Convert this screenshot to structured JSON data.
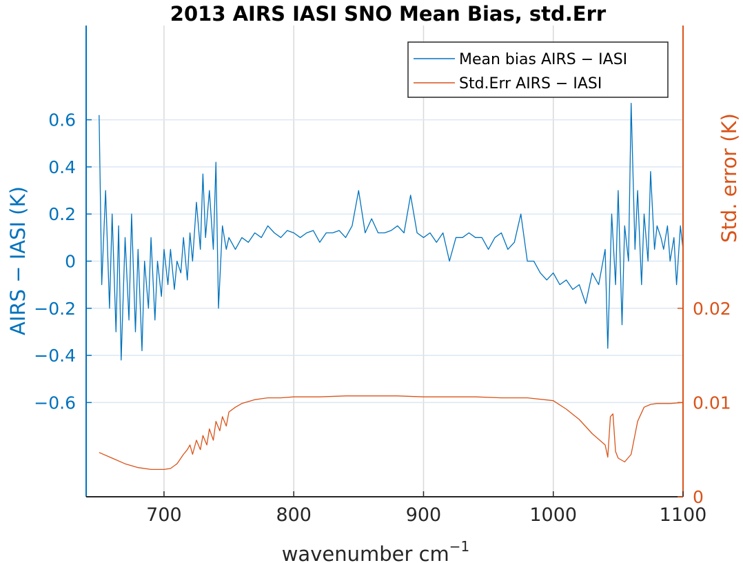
{
  "chart_data": {
    "type": "line",
    "title": "2013 AIRS IASI SNO Mean Bias, std.Err",
    "xlabel": "wavenumber cm",
    "xlabel_sup": "−1",
    "ylabel_left": "AIRS − IASI (K)",
    "ylabel_right": "Std. error (K)",
    "xlim": [
      640,
      1100
    ],
    "ylim_left": [
      -1.0,
      1.0
    ],
    "ylim_right": [
      0,
      0.05
    ],
    "x_ticks": [
      "700",
      "800",
      "900",
      "1000",
      "1100"
    ],
    "y_left_ticks": [
      "0.6",
      "0.4",
      "0.2",
      "0",
      "−0.2",
      "−0.4",
      "−0.6"
    ],
    "y_right_ticks": [
      "0.02",
      "0.01",
      "0"
    ],
    "grid": true,
    "legend": {
      "position": "top-right",
      "entries": [
        "Mean bias AIRS − IASI",
        "Std.Err AIRS − IASI"
      ]
    },
    "series": [
      {
        "name": "Mean bias AIRS − IASI",
        "axis": "left",
        "color": "#0072BD",
        "x": [
          650,
          652,
          655,
          658,
          660,
          663,
          665,
          667,
          670,
          673,
          675,
          678,
          680,
          683,
          685,
          688,
          690,
          693,
          695,
          698,
          700,
          703,
          705,
          708,
          710,
          713,
          715,
          718,
          720,
          722,
          725,
          728,
          730,
          732,
          735,
          738,
          740,
          742,
          745,
          748,
          750,
          755,
          760,
          765,
          770,
          775,
          780,
          785,
          790,
          795,
          800,
          805,
          810,
          815,
          820,
          825,
          830,
          835,
          840,
          845,
          850,
          855,
          860,
          865,
          870,
          875,
          880,
          885,
          890,
          895,
          900,
          905,
          910,
          915,
          920,
          925,
          930,
          935,
          940,
          945,
          950,
          955,
          960,
          965,
          970,
          975,
          980,
          985,
          990,
          995,
          1000,
          1005,
          1010,
          1015,
          1020,
          1025,
          1030,
          1035,
          1040,
          1042,
          1045,
          1048,
          1050,
          1053,
          1055,
          1058,
          1060,
          1063,
          1065,
          1068,
          1070,
          1073,
          1075,
          1078,
          1080,
          1083,
          1085,
          1088,
          1090,
          1093,
          1095,
          1098,
          1100
        ],
        "values": [
          0.62,
          -0.1,
          0.3,
          -0.2,
          0.2,
          -0.3,
          0.15,
          -0.42,
          0.1,
          -0.25,
          0.2,
          -0.3,
          0.05,
          -0.38,
          0.0,
          -0.2,
          0.1,
          -0.25,
          0.0,
          -0.15,
          0.05,
          -0.1,
          0.05,
          -0.12,
          0.0,
          -0.05,
          0.1,
          -0.08,
          0.12,
          0.0,
          0.25,
          0.05,
          0.37,
          0.1,
          0.3,
          0.05,
          0.42,
          -0.2,
          0.15,
          0.05,
          0.1,
          0.05,
          0.1,
          0.08,
          0.12,
          0.1,
          0.15,
          0.12,
          0.1,
          0.13,
          0.12,
          0.1,
          0.12,
          0.13,
          0.08,
          0.12,
          0.12,
          0.13,
          0.1,
          0.15,
          0.3,
          0.12,
          0.18,
          0.12,
          0.12,
          0.13,
          0.15,
          0.12,
          0.28,
          0.12,
          0.1,
          0.12,
          0.08,
          0.12,
          0.0,
          0.1,
          0.1,
          0.12,
          0.1,
          0.1,
          0.05,
          0.1,
          0.12,
          0.05,
          0.08,
          0.2,
          0.0,
          0.0,
          -0.05,
          -0.08,
          -0.05,
          -0.1,
          -0.08,
          -0.12,
          -0.1,
          -0.18,
          -0.05,
          -0.1,
          0.05,
          -0.37,
          0.2,
          -0.1,
          0.3,
          -0.27,
          0.15,
          0.0,
          0.67,
          0.05,
          0.3,
          -0.1,
          0.2,
          0.0,
          0.38,
          0.05,
          0.15,
          0.1,
          0.05,
          0.15,
          0.0,
          0.1,
          -0.1,
          0.15,
          0.05
        ]
      },
      {
        "name": "Std.Err AIRS − IASI",
        "axis": "right",
        "color": "#D95319",
        "x": [
          650,
          660,
          670,
          680,
          690,
          700,
          705,
          710,
          715,
          718,
          720,
          722,
          725,
          728,
          730,
          733,
          735,
          738,
          740,
          743,
          745,
          748,
          750,
          755,
          760,
          765,
          770,
          775,
          780,
          790,
          800,
          820,
          840,
          860,
          880,
          900,
          920,
          940,
          960,
          980,
          1000,
          1010,
          1020,
          1030,
          1040,
          1042,
          1044,
          1046,
          1048,
          1050,
          1055,
          1060,
          1065,
          1070,
          1075,
          1080,
          1090,
          1100
        ],
        "values": [
          0.0047,
          0.0041,
          0.0035,
          0.0031,
          0.0029,
          0.0029,
          0.003,
          0.0035,
          0.0045,
          0.005,
          0.0055,
          0.0045,
          0.006,
          0.005,
          0.0065,
          0.0055,
          0.0072,
          0.006,
          0.008,
          0.007,
          0.0085,
          0.0075,
          0.009,
          0.0095,
          0.0099,
          0.0101,
          0.0103,
          0.0104,
          0.0105,
          0.0105,
          0.0106,
          0.0106,
          0.0107,
          0.0107,
          0.0107,
          0.0106,
          0.0106,
          0.0106,
          0.0105,
          0.0105,
          0.0102,
          0.0093,
          0.0082,
          0.0067,
          0.0055,
          0.0042,
          0.0085,
          0.0088,
          0.0048,
          0.0041,
          0.0037,
          0.0045,
          0.008,
          0.0095,
          0.0098,
          0.0099,
          0.0099,
          0.01
        ]
      }
    ]
  }
}
